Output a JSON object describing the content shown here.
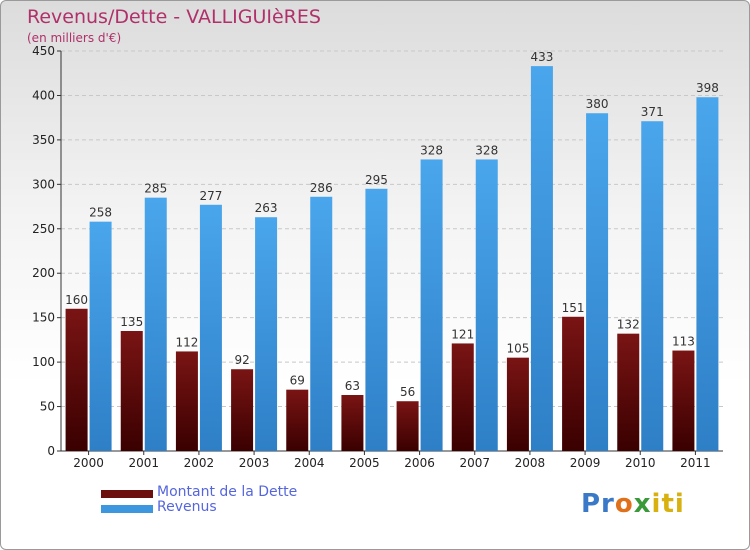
{
  "title": "Revenus/Dette - VALLIGUIèRES",
  "subtitle": "(en milliers d'€)",
  "chart_data": {
    "type": "bar",
    "categories": [
      "2000",
      "2001",
      "2002",
      "2003",
      "2004",
      "2005",
      "2006",
      "2007",
      "2008",
      "2009",
      "2010",
      "2011"
    ],
    "series": [
      {
        "name": "Montant de la Dette",
        "color": "#6b0f0f",
        "values": [
          160,
          135,
          112,
          92,
          69,
          63,
          56,
          121,
          105,
          151,
          132,
          113
        ]
      },
      {
        "name": "Revenus",
        "color": "#3d97df",
        "values": [
          258,
          285,
          277,
          263,
          286,
          295,
          328,
          328,
          433,
          380,
          371,
          398
        ]
      }
    ],
    "ylim": [
      0,
      450
    ],
    "yticks": [
      0,
      50,
      100,
      150,
      200,
      250,
      300,
      350,
      400,
      450
    ],
    "grid": true,
    "legend_position": "bottom-left"
  },
  "logo": {
    "text": "Proxiti",
    "parts": [
      "Pr",
      "o",
      "x",
      "iti"
    ]
  }
}
